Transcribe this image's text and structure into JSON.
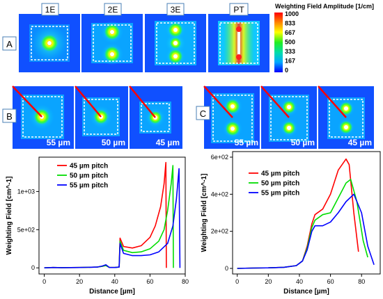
{
  "panels": {
    "A": {
      "label": "A",
      "columns": [
        "1E",
        "2E",
        "3E",
        "PT"
      ]
    },
    "B": {
      "label": "B",
      "captions": [
        "55 µm",
        "50 µm",
        "45 µm"
      ]
    },
    "C": {
      "label": "C",
      "captions": [
        "55 µm",
        "50 µm",
        "45 µm"
      ]
    }
  },
  "colorbar": {
    "title": "Weighting Field Amplitude [1/cm]",
    "ticks": [
      "1000",
      "833",
      "667",
      "500",
      "333",
      "167",
      "0"
    ]
  },
  "colors": {
    "45um": "#ff0000",
    "50um": "#00dd00",
    "55um": "#0000ff"
  },
  "chart_data": [
    {
      "type": "line",
      "xlabel": "Distance [µm]",
      "ylabel": "Weighting Field [cm^-1]",
      "xlim": [
        -3,
        80
      ],
      "ylim": [
        -80,
        1450
      ],
      "xticks": [
        0,
        20,
        40,
        60,
        80
      ],
      "xtick_labels": [
        "0",
        "20",
        "40",
        "60",
        "80"
      ],
      "yticks": [
        0,
        500,
        1000
      ],
      "ytick_labels": [
        "0",
        "5e+02",
        "1e+03"
      ],
      "series": [
        {
          "name": "45 µm pitch",
          "color": "#ff0000",
          "x": [
            0,
            5,
            10,
            20,
            30,
            33,
            35,
            37,
            40,
            42.5,
            43,
            45,
            50,
            55,
            60,
            63,
            66,
            68,
            69,
            69.3
          ],
          "y": [
            0,
            5,
            3,
            5,
            10,
            20,
            30,
            5,
            5,
            10,
            390,
            280,
            260,
            290,
            400,
            550,
            800,
            1100,
            1380,
            0
          ]
        },
        {
          "name": "50 µm pitch",
          "color": "#00dd00",
          "x": [
            0,
            5,
            10,
            20,
            30,
            33,
            35,
            37,
            40,
            42.5,
            43,
            45,
            50,
            55,
            60,
            65,
            68,
            70,
            72,
            73,
            73.3
          ],
          "y": [
            0,
            5,
            3,
            5,
            10,
            20,
            30,
            5,
            5,
            10,
            350,
            230,
            200,
            210,
            250,
            350,
            500,
            750,
            1100,
            1340,
            0
          ]
        },
        {
          "name": "55 µm pitch",
          "color": "#0000ff",
          "x": [
            0,
            5,
            10,
            20,
            30,
            33,
            35,
            37,
            40,
            42.5,
            43,
            45,
            50,
            55,
            60,
            65,
            70,
            73,
            75,
            76.5,
            77
          ],
          "y": [
            0,
            5,
            3,
            5,
            10,
            25,
            40,
            5,
            5,
            10,
            320,
            190,
            160,
            160,
            170,
            210,
            320,
            550,
            900,
            1300,
            0
          ]
        }
      ]
    },
    {
      "type": "line",
      "xlabel": "Distance [µm]",
      "ylabel": "Weighting Field [cm^-1]",
      "xlim": [
        -3,
        92
      ],
      "ylim": [
        -30,
        630
      ],
      "xticks": [
        0,
        20,
        40,
        60,
        80
      ],
      "xtick_labels": [
        "0",
        "20",
        "40",
        "60",
        "80"
      ],
      "yticks": [
        0,
        200,
        400,
        600
      ],
      "ytick_labels": [
        "0",
        "2e+02",
        "4e+02",
        "6e+02"
      ],
      "series": [
        {
          "name": "45 µm pitch",
          "color": "#ff0000",
          "x": [
            0,
            10,
            20,
            30,
            38,
            42,
            45,
            48,
            50,
            55,
            60,
            65,
            70,
            72,
            75,
            78
          ],
          "y": [
            0,
            2,
            3,
            6,
            15,
            40,
            120,
            240,
            290,
            320,
            400,
            530,
            590,
            560,
            300,
            90
          ]
        },
        {
          "name": "50 µm pitch",
          "color": "#00dd00",
          "x": [
            0,
            10,
            20,
            30,
            38,
            42,
            45,
            48,
            50,
            55,
            60,
            65,
            70,
            73,
            77,
            81,
            84
          ],
          "y": [
            0,
            2,
            3,
            6,
            15,
            40,
            110,
            220,
            260,
            290,
            300,
            380,
            460,
            480,
            360,
            150,
            60
          ]
        },
        {
          "name": "55 µm pitch",
          "color": "#0000ff",
          "x": [
            0,
            10,
            20,
            30,
            38,
            42,
            45,
            48,
            50,
            55,
            60,
            65,
            70,
            75,
            80,
            84,
            88
          ],
          "y": [
            0,
            2,
            3,
            6,
            15,
            40,
            100,
            200,
            230,
            230,
            250,
            300,
            360,
            400,
            300,
            120,
            20
          ]
        }
      ]
    }
  ]
}
